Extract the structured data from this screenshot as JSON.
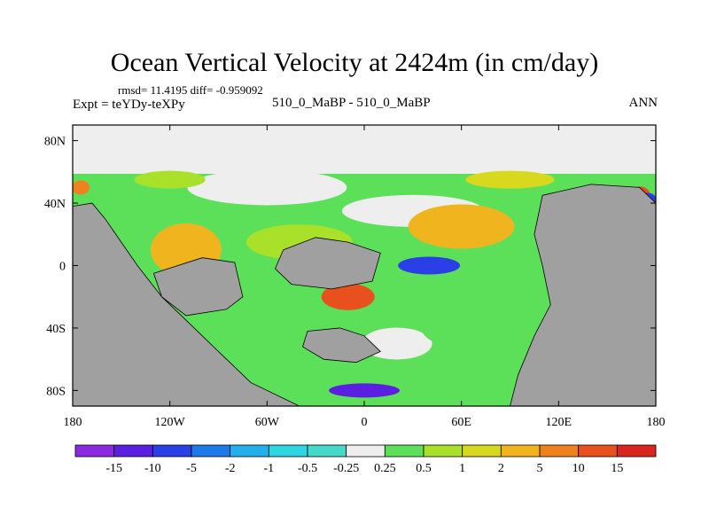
{
  "header": {
    "title": "Ocean Vertical Velocity at 2424m (in cm/day)",
    "stats_line": "rmsd= 11.4195 diff= -0.959092",
    "expt_line": "Expt = teYDy-teXPy",
    "case_line": "510_0_MaBP - 510_0_MaBP",
    "season": "ANN"
  },
  "chart_data": {
    "type": "heatmap",
    "title": "Ocean Vertical Velocity at 2424m (in cm/day)",
    "x_ticks": [
      "180",
      "120W",
      "60W",
      "0",
      "60E",
      "120E",
      "180"
    ],
    "y_ticks": [
      "80N",
      "40N",
      "0",
      "40S",
      "80S"
    ],
    "x_range": [
      -180,
      180
    ],
    "y_range": [
      -90,
      90
    ],
    "colorbar": {
      "labels": [
        "-15",
        "-10",
        "-5",
        "-2",
        "-1",
        "-0.5",
        "-0.25",
        "0.25",
        "0.5",
        "1",
        "2",
        "5",
        "10",
        "15"
      ],
      "colors": [
        "#8a2be2",
        "#5a1fe0",
        "#2a40e6",
        "#1e7ae8",
        "#23b0ea",
        "#2dd6e0",
        "#46d8c8",
        "#eeeeee",
        "#5ce05a",
        "#a8e02a",
        "#d8d81e",
        "#f0b41e",
        "#f0821e",
        "#e8501e",
        "#d8261e"
      ]
    },
    "land_color": "#a0a0a0",
    "missing_color": "#ffffff"
  }
}
